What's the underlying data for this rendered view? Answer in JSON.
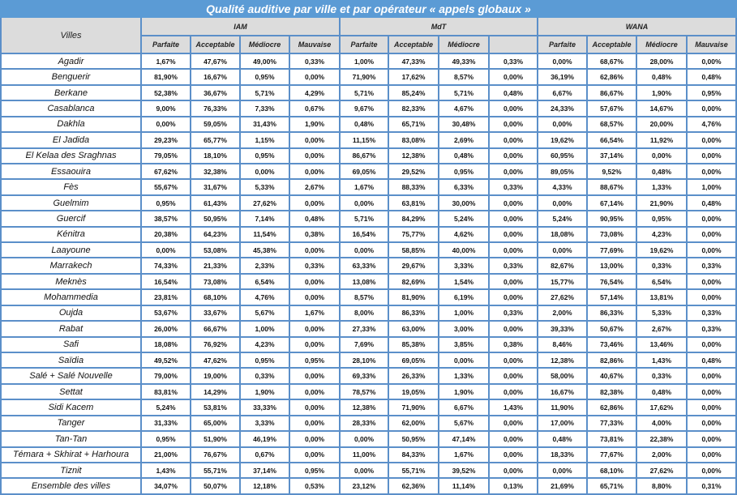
{
  "title": "Qualité auditive par ville et par opérateur « appels globaux »",
  "header": {
    "villes": "Villes",
    "operators": [
      {
        "name": "IAM",
        "cols": [
          "Parfaite",
          "Acceptable",
          "Médiocre",
          "Mauvaise"
        ]
      },
      {
        "name": "MdT",
        "cols": [
          "Parfaite",
          "Acceptable",
          "Médiocre",
          ""
        ]
      },
      {
        "name": "WANA",
        "cols": [
          "Parfaite",
          "Acceptable",
          "Médiocre",
          "Mauvaise"
        ]
      }
    ]
  },
  "colors": {
    "title_bg": "#5b9bd5",
    "border": "#5b8fc9",
    "header_bg": "#dcdcdc"
  },
  "rows": [
    {
      "ville": "Agadir",
      "values": [
        "1,67%",
        "47,67%",
        "49,00%",
        "0,33%",
        "1,00%",
        "47,33%",
        "49,33%",
        "0,33%",
        "0,00%",
        "68,67%",
        "28,00%",
        "0,00%"
      ]
    },
    {
      "ville": "Benguerir",
      "values": [
        "81,90%",
        "16,67%",
        "0,95%",
        "0,00%",
        "71,90%",
        "17,62%",
        "8,57%",
        "0,00%",
        "36,19%",
        "62,86%",
        "0,48%",
        "0,48%"
      ]
    },
    {
      "ville": "Berkane",
      "values": [
        "52,38%",
        "36,67%",
        "5,71%",
        "4,29%",
        "5,71%",
        "85,24%",
        "5,71%",
        "0,48%",
        "6,67%",
        "86,67%",
        "1,90%",
        "0,95%"
      ]
    },
    {
      "ville": "Casablanca",
      "values": [
        "9,00%",
        "76,33%",
        "7,33%",
        "0,67%",
        "9,67%",
        "82,33%",
        "4,67%",
        "0,00%",
        "24,33%",
        "57,67%",
        "14,67%",
        "0,00%"
      ]
    },
    {
      "ville": "Dakhla",
      "values": [
        "0,00%",
        "59,05%",
        "31,43%",
        "1,90%",
        "0,48%",
        "65,71%",
        "30,48%",
        "0,00%",
        "0,00%",
        "68,57%",
        "20,00%",
        "4,76%"
      ]
    },
    {
      "ville": "El Jadida",
      "values": [
        "29,23%",
        "65,77%",
        "1,15%",
        "0,00%",
        "11,15%",
        "83,08%",
        "2,69%",
        "0,00%",
        "19,62%",
        "66,54%",
        "11,92%",
        "0,00%"
      ]
    },
    {
      "ville": "El Kelaa des Sraghnas",
      "values": [
        "79,05%",
        "18,10%",
        "0,95%",
        "0,00%",
        "86,67%",
        "12,38%",
        "0,48%",
        "0,00%",
        "60,95%",
        "37,14%",
        "0,00%",
        "0,00%"
      ]
    },
    {
      "ville": "Essaouira",
      "values": [
        "67,62%",
        "32,38%",
        "0,00%",
        "0,00%",
        "69,05%",
        "29,52%",
        "0,95%",
        "0,00%",
        "89,05%",
        "9,52%",
        "0,48%",
        "0,00%"
      ]
    },
    {
      "ville": "Fès",
      "values": [
        "55,67%",
        "31,67%",
        "5,33%",
        "2,67%",
        "1,67%",
        "88,33%",
        "6,33%",
        "0,33%",
        "4,33%",
        "88,67%",
        "1,33%",
        "1,00%"
      ]
    },
    {
      "ville": "Guelmim",
      "values": [
        "0,95%",
        "61,43%",
        "27,62%",
        "0,00%",
        "0,00%",
        "63,81%",
        "30,00%",
        "0,00%",
        "0,00%",
        "67,14%",
        "21,90%",
        "0,48%"
      ]
    },
    {
      "ville": "Guercif",
      "values": [
        "38,57%",
        "50,95%",
        "7,14%",
        "0,48%",
        "5,71%",
        "84,29%",
        "5,24%",
        "0,00%",
        "5,24%",
        "90,95%",
        "0,95%",
        "0,00%"
      ]
    },
    {
      "ville": "Kénitra",
      "values": [
        "20,38%",
        "64,23%",
        "11,54%",
        "0,38%",
        "16,54%",
        "75,77%",
        "4,62%",
        "0,00%",
        "18,08%",
        "73,08%",
        "4,23%",
        "0,00%"
      ]
    },
    {
      "ville": "Laayoune",
      "values": [
        "0,00%",
        "53,08%",
        "45,38%",
        "0,00%",
        "0,00%",
        "58,85%",
        "40,00%",
        "0,00%",
        "0,00%",
        "77,69%",
        "19,62%",
        "0,00%"
      ]
    },
    {
      "ville": "Marrakech",
      "values": [
        "74,33%",
        "21,33%",
        "2,33%",
        "0,33%",
        "63,33%",
        "29,67%",
        "3,33%",
        "0,33%",
        "82,67%",
        "13,00%",
        "0,33%",
        "0,33%"
      ]
    },
    {
      "ville": "Meknès",
      "values": [
        "16,54%",
        "73,08%",
        "6,54%",
        "0,00%",
        "13,08%",
        "82,69%",
        "1,54%",
        "0,00%",
        "15,77%",
        "76,54%",
        "6,54%",
        "0,00%"
      ]
    },
    {
      "ville": "Mohammedia",
      "values": [
        "23,81%",
        "68,10%",
        "4,76%",
        "0,00%",
        "8,57%",
        "81,90%",
        "6,19%",
        "0,00%",
        "27,62%",
        "57,14%",
        "13,81%",
        "0,00%"
      ]
    },
    {
      "ville": "Oujda",
      "values": [
        "53,67%",
        "33,67%",
        "5,67%",
        "1,67%",
        "8,00%",
        "86,33%",
        "1,00%",
        "0,33%",
        "2,00%",
        "86,33%",
        "5,33%",
        "0,33%"
      ]
    },
    {
      "ville": "Rabat",
      "values": [
        "26,00%",
        "66,67%",
        "1,00%",
        "0,00%",
        "27,33%",
        "63,00%",
        "3,00%",
        "0,00%",
        "39,33%",
        "50,67%",
        "2,67%",
        "0,33%"
      ]
    },
    {
      "ville": "Safi",
      "values": [
        "18,08%",
        "76,92%",
        "4,23%",
        "0,00%",
        "7,69%",
        "85,38%",
        "3,85%",
        "0,38%",
        "8,46%",
        "73,46%",
        "13,46%",
        "0,00%"
      ]
    },
    {
      "ville": "Saïdia",
      "values": [
        "49,52%",
        "47,62%",
        "0,95%",
        "0,95%",
        "28,10%",
        "69,05%",
        "0,00%",
        "0,00%",
        "12,38%",
        "82,86%",
        "1,43%",
        "0,48%"
      ]
    },
    {
      "ville": "Salé + Salé Nouvelle",
      "values": [
        "79,00%",
        "19,00%",
        "0,33%",
        "0,00%",
        "69,33%",
        "26,33%",
        "1,33%",
        "0,00%",
        "58,00%",
        "40,67%",
        "0,33%",
        "0,00%"
      ]
    },
    {
      "ville": "Settat",
      "values": [
        "83,81%",
        "14,29%",
        "1,90%",
        "0,00%",
        "78,57%",
        "19,05%",
        "1,90%",
        "0,00%",
        "16,67%",
        "82,38%",
        "0,48%",
        "0,00%"
      ]
    },
    {
      "ville": "Sidi Kacem",
      "values": [
        "5,24%",
        "53,81%",
        "33,33%",
        "0,00%",
        "12,38%",
        "71,90%",
        "6,67%",
        "1,43%",
        "11,90%",
        "62,86%",
        "17,62%",
        "0,00%"
      ]
    },
    {
      "ville": "Tanger",
      "values": [
        "31,33%",
        "65,00%",
        "3,33%",
        "0,00%",
        "28,33%",
        "62,00%",
        "5,67%",
        "0,00%",
        "17,00%",
        "77,33%",
        "4,00%",
        "0,00%"
      ]
    },
    {
      "ville": "Tan-Tan",
      "values": [
        "0,95%",
        "51,90%",
        "46,19%",
        "0,00%",
        "0,00%",
        "50,95%",
        "47,14%",
        "0,00%",
        "0,48%",
        "73,81%",
        "22,38%",
        "0,00%"
      ]
    },
    {
      "ville": "Témara + Skhirat + Harhoura",
      "values": [
        "21,00%",
        "76,67%",
        "0,67%",
        "0,00%",
        "11,00%",
        "84,33%",
        "1,67%",
        "0,00%",
        "18,33%",
        "77,67%",
        "2,00%",
        "0,00%"
      ]
    },
    {
      "ville": "Tiznit",
      "values": [
        "1,43%",
        "55,71%",
        "37,14%",
        "0,95%",
        "0,00%",
        "55,71%",
        "39,52%",
        "0,00%",
        "0,00%",
        "68,10%",
        "27,62%",
        "0,00%"
      ]
    },
    {
      "ville": "Ensemble des villes",
      "values": [
        "34,07%",
        "50,07%",
        "12,18%",
        "0,53%",
        "23,12%",
        "62,36%",
        "11,14%",
        "0,13%",
        "21,69%",
        "65,71%",
        "8,80%",
        "0,31%"
      ]
    }
  ]
}
